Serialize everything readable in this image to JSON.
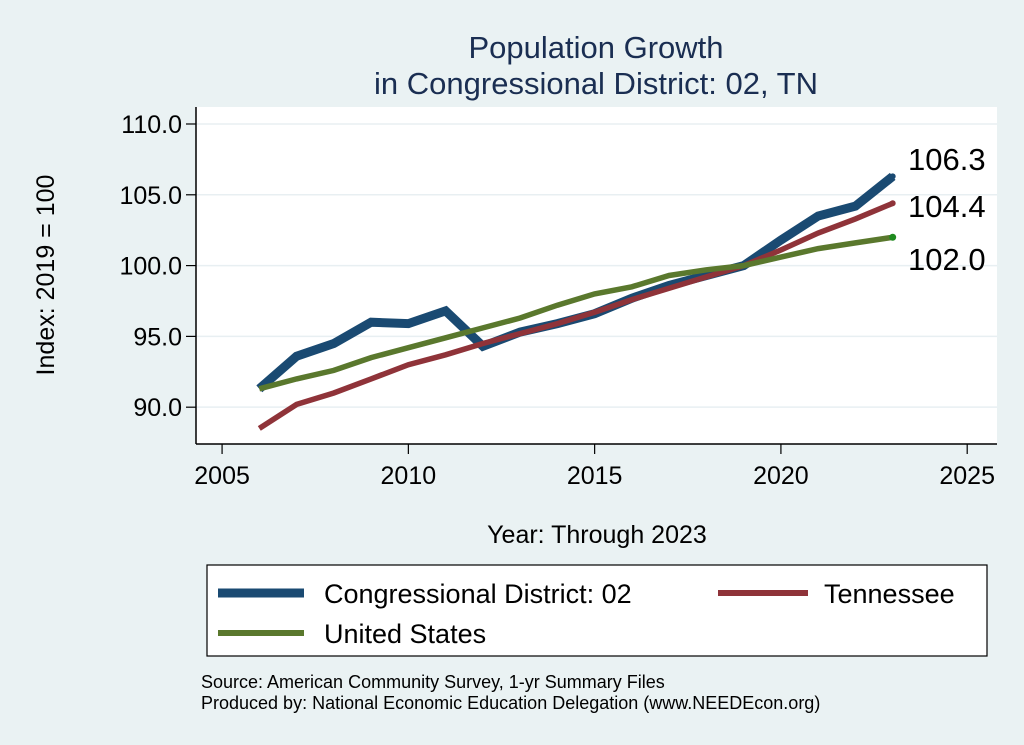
{
  "chart_data": {
    "type": "line",
    "title": [
      "Population Growth",
      "in Congressional District: 02, TN"
    ],
    "xlabel": "Year: Through 2023",
    "ylabel": "Index: 2019 = 100",
    "xlim": [
      2004.3,
      2025.8
    ],
    "ylim": [
      87.4,
      111.2
    ],
    "xticks": [
      2005,
      2010,
      2015,
      2020,
      2025
    ],
    "xtick_labels": [
      "2005",
      "2010",
      "2015",
      "2020",
      "2025"
    ],
    "yticks": [
      90,
      95,
      100,
      105,
      110
    ],
    "ytick_labels": [
      "90.0",
      "95.0",
      "100.0",
      "105.0",
      "110.0"
    ],
    "grid": true,
    "x": [
      2006,
      2007,
      2008,
      2009,
      2010,
      2011,
      2012,
      2013,
      2014,
      2015,
      2016,
      2017,
      2018,
      2019,
      2020,
      2021,
      2022,
      2023
    ],
    "series": [
      {
        "name": "Congressional District: 02",
        "color": "#1a4a72",
        "values": [
          91.3,
          93.6,
          94.5,
          96.0,
          95.9,
          96.8,
          94.3,
          95.3,
          95.9,
          96.6,
          97.7,
          98.6,
          99.3,
          100.0,
          101.8,
          103.5,
          104.2,
          106.3
        ],
        "end_label": "106.3"
      },
      {
        "name": "Tennessee",
        "color": "#8f3339",
        "values": [
          88.5,
          90.2,
          91.0,
          92.0,
          93.0,
          93.7,
          94.5,
          95.2,
          95.9,
          96.7,
          97.6,
          98.4,
          99.2,
          100.0,
          101.1,
          102.3,
          103.3,
          104.4
        ],
        "end_label": "104.4"
      },
      {
        "name": "United States",
        "color": "#5a782d",
        "values": [
          91.3,
          92.0,
          92.6,
          93.5,
          94.2,
          94.9,
          95.6,
          96.3,
          97.2,
          98.0,
          98.5,
          99.3,
          99.7,
          100.0,
          100.6,
          101.2,
          101.6,
          102.0
        ],
        "end_label": "102.0"
      }
    ],
    "legend": {
      "placement": "bottom",
      "entries": [
        "Congressional District: 02",
        "Tennessee",
        "United States"
      ]
    },
    "notes": [
      "Source: American Community Survey, 1-yr Summary Files",
      "Produced by: National Economic Education Delegation (www.NEEDEcon.org)"
    ]
  }
}
